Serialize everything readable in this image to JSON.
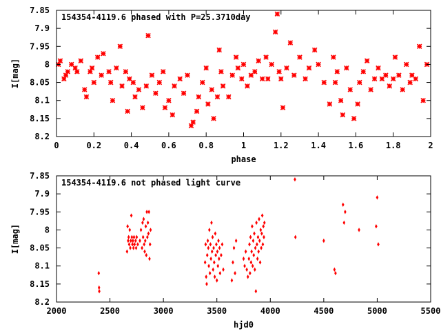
{
  "chart_data": [
    {
      "type": "scatter",
      "title": "154354-4119.6 phased with P=25.3710day",
      "xlabel": "phase",
      "ylabel": "I[mag]",
      "xlim": [
        0,
        2
      ],
      "ylim": [
        7.85,
        8.2
      ],
      "y_inverted": true,
      "grid": false,
      "marker_color": "#ff0000",
      "xticks": [
        "0",
        "0.2",
        "0.4",
        "0.6",
        "0.8",
        "1",
        "1.2",
        "1.4",
        "1.6",
        "1.8",
        "2"
      ],
      "xtick_values": [
        0,
        0.2,
        0.4,
        0.6,
        0.8,
        1.0,
        1.2,
        1.4,
        1.6,
        1.8,
        2.0
      ],
      "yticks": [
        "7.85",
        "7.9",
        "7.95",
        "8",
        "8.05",
        "8.1",
        "8.15",
        "8.2"
      ],
      "ytick_values": [
        7.85,
        7.9,
        7.95,
        8.0,
        8.05,
        8.1,
        8.15,
        8.2
      ],
      "points": [
        [
          0.01,
          8.0
        ],
        [
          0.02,
          7.99
        ],
        [
          0.04,
          8.04
        ],
        [
          0.05,
          8.03
        ],
        [
          0.06,
          8.02
        ],
        [
          0.08,
          8.0
        ],
        [
          0.1,
          8.01
        ],
        [
          0.11,
          8.02
        ],
        [
          0.13,
          7.99
        ],
        [
          0.15,
          8.07
        ],
        [
          0.16,
          8.09
        ],
        [
          0.18,
          8.02
        ],
        [
          0.19,
          8.01
        ],
        [
          0.2,
          8.05
        ],
        [
          0.22,
          7.98
        ],
        [
          0.24,
          8.03
        ],
        [
          0.25,
          7.97
        ],
        [
          0.28,
          8.02
        ],
        [
          0.29,
          8.05
        ],
        [
          0.3,
          8.1
        ],
        [
          0.32,
          8.01
        ],
        [
          0.34,
          7.95
        ],
        [
          0.35,
          8.06
        ],
        [
          0.37,
          8.02
        ],
        [
          0.38,
          8.13
        ],
        [
          0.39,
          8.04
        ],
        [
          0.41,
          8.05
        ],
        [
          0.42,
          8.09
        ],
        [
          0.44,
          8.07
        ],
        [
          0.46,
          8.12
        ],
        [
          0.48,
          8.06
        ],
        [
          0.49,
          7.92
        ],
        [
          0.51,
          8.03
        ],
        [
          0.53,
          8.08
        ],
        [
          0.55,
          8.05
        ],
        [
          0.57,
          8.02
        ],
        [
          0.58,
          8.12
        ],
        [
          0.6,
          8.1
        ],
        [
          0.62,
          8.14
        ],
        [
          0.63,
          8.06
        ],
        [
          0.66,
          8.04
        ],
        [
          0.68,
          8.08
        ],
        [
          0.7,
          8.03
        ],
        [
          0.72,
          8.17
        ],
        [
          0.73,
          8.16
        ],
        [
          0.75,
          8.13
        ],
        [
          0.76,
          8.09
        ],
        [
          0.78,
          8.05
        ],
        [
          0.8,
          8.01
        ],
        [
          0.81,
          8.11
        ],
        [
          0.83,
          8.07
        ],
        [
          0.84,
          8.15
        ],
        [
          0.86,
          8.09
        ],
        [
          0.87,
          7.96
        ],
        [
          0.88,
          8.02
        ],
        [
          0.89,
          8.06
        ],
        [
          0.92,
          8.09
        ],
        [
          0.94,
          8.03
        ],
        [
          0.96,
          7.98
        ],
        [
          0.97,
          8.01
        ],
        [
          0.99,
          8.04
        ],
        [
          1.0,
          8.0
        ],
        [
          1.02,
          8.06
        ],
        [
          1.04,
          8.03
        ],
        [
          1.06,
          8.02
        ],
        [
          1.08,
          7.99
        ],
        [
          1.1,
          8.04
        ],
        [
          1.12,
          7.98
        ],
        [
          1.13,
          8.04
        ],
        [
          1.15,
          8.0
        ],
        [
          1.17,
          7.91
        ],
        [
          1.18,
          7.86
        ],
        [
          1.19,
          8.02
        ],
        [
          1.2,
          8.04
        ],
        [
          1.21,
          8.12
        ],
        [
          1.23,
          8.01
        ],
        [
          1.25,
          7.94
        ],
        [
          1.27,
          8.03
        ],
        [
          1.3,
          7.98
        ],
        [
          1.33,
          8.04
        ],
        [
          1.35,
          8.01
        ],
        [
          1.38,
          7.96
        ],
        [
          1.4,
          8.0
        ],
        [
          1.43,
          8.05
        ],
        [
          1.46,
          8.11
        ],
        [
          1.48,
          7.98
        ],
        [
          1.49,
          8.05
        ],
        [
          1.5,
          8.02
        ],
        [
          1.52,
          8.1
        ],
        [
          1.53,
          8.14
        ],
        [
          1.55,
          8.01
        ],
        [
          1.57,
          8.07
        ],
        [
          1.59,
          8.15
        ],
        [
          1.61,
          8.11
        ],
        [
          1.62,
          8.05
        ],
        [
          1.64,
          8.02
        ],
        [
          1.66,
          7.99
        ],
        [
          1.68,
          8.07
        ],
        [
          1.7,
          8.04
        ],
        [
          1.72,
          8.01
        ],
        [
          1.74,
          8.04
        ],
        [
          1.76,
          8.03
        ],
        [
          1.78,
          8.06
        ],
        [
          1.8,
          8.04
        ],
        [
          1.81,
          7.98
        ],
        [
          1.83,
          8.03
        ],
        [
          1.85,
          8.07
        ],
        [
          1.87,
          8.0
        ],
        [
          1.89,
          8.05
        ],
        [
          1.9,
          8.03
        ],
        [
          1.92,
          8.04
        ],
        [
          1.94,
          7.95
        ],
        [
          1.96,
          8.1
        ],
        [
          1.98,
          8.0
        ]
      ]
    },
    {
      "type": "scatter",
      "title": "154354-4119.6 not phased light curve",
      "xlabel": "hjd0",
      "ylabel": "I[mag]",
      "xlim": [
        2000,
        5500
      ],
      "ylim": [
        7.85,
        8.2
      ],
      "y_inverted": true,
      "grid": false,
      "marker_color": "#ff0000",
      "xticks": [
        "2000",
        "2500",
        "3000",
        "3500",
        "4000",
        "4500",
        "5000",
        "5500"
      ],
      "xtick_values": [
        2000,
        2500,
        3000,
        3500,
        4000,
        4500,
        5000,
        5500
      ],
      "yticks": [
        "7.85",
        "7.9",
        "7.95",
        "8",
        "8.05",
        "8.1",
        "8.15",
        "8.2"
      ],
      "ytick_values": [
        7.85,
        7.9,
        7.95,
        8.0,
        8.05,
        8.1,
        8.15,
        8.2
      ],
      "points": [
        [
          2395,
          8.12
        ],
        [
          2398,
          8.16
        ],
        [
          2400,
          8.17
        ],
        [
          2660,
          8.06
        ],
        [
          2665,
          7.99
        ],
        [
          2670,
          8.03
        ],
        [
          2675,
          8.02
        ],
        [
          2680,
          8.04
        ],
        [
          2685,
          8.0
        ],
        [
          2690,
          8.05
        ],
        [
          2695,
          8.03
        ],
        [
          2700,
          7.96
        ],
        [
          2705,
          8.02
        ],
        [
          2710,
          8.04
        ],
        [
          2715,
          8.03
        ],
        [
          2720,
          8.05
        ],
        [
          2725,
          8.02
        ],
        [
          2730,
          8.04
        ],
        [
          2740,
          8.03
        ],
        [
          2745,
          8.05
        ],
        [
          2750,
          8.02
        ],
        [
          2760,
          8.04
        ],
        [
          2780,
          8.03
        ],
        [
          2790,
          8.0
        ],
        [
          2800,
          8.05
        ],
        [
          2805,
          7.98
        ],
        [
          2810,
          8.02
        ],
        [
          2815,
          7.97
        ],
        [
          2820,
          8.04
        ],
        [
          2825,
          8.06
        ],
        [
          2830,
          8.03
        ],
        [
          2835,
          7.99
        ],
        [
          2840,
          8.07
        ],
        [
          2845,
          7.95
        ],
        [
          2850,
          8.02
        ],
        [
          2855,
          7.98
        ],
        [
          2860,
          8.01
        ],
        [
          2865,
          7.95
        ],
        [
          2870,
          8.08
        ],
        [
          2875,
          8.04
        ],
        [
          2880,
          8.0
        ],
        [
          3390,
          8.09
        ],
        [
          3395,
          8.04
        ],
        [
          3400,
          8.13
        ],
        [
          3405,
          8.15
        ],
        [
          3410,
          8.07
        ],
        [
          3415,
          8.03
        ],
        [
          3420,
          8.05
        ],
        [
          3425,
          8.1
        ],
        [
          3430,
          8.0
        ],
        [
          3435,
          8.12
        ],
        [
          3440,
          8.04
        ],
        [
          3445,
          8.08
        ],
        [
          3450,
          7.98
        ],
        [
          3455,
          8.06
        ],
        [
          3460,
          8.02
        ],
        [
          3465,
          8.11
        ],
        [
          3470,
          8.05
        ],
        [
          3475,
          8.09
        ],
        [
          3480,
          8.13
        ],
        [
          3485,
          8.01
        ],
        [
          3490,
          8.07
        ],
        [
          3495,
          8.04
        ],
        [
          3500,
          8.14
        ],
        [
          3505,
          8.06
        ],
        [
          3510,
          8.1
        ],
        [
          3515,
          8.03
        ],
        [
          3520,
          8.08
        ],
        [
          3525,
          8.05
        ],
        [
          3530,
          8.12
        ],
        [
          3540,
          8.07
        ],
        [
          3550,
          8.04
        ],
        [
          3560,
          8.11
        ],
        [
          3640,
          8.14
        ],
        [
          3650,
          8.09
        ],
        [
          3660,
          8.05
        ],
        [
          3670,
          8.12
        ],
        [
          3680,
          8.03
        ],
        [
          3750,
          8.08
        ],
        [
          3760,
          8.1
        ],
        [
          3770,
          8.06
        ],
        [
          3780,
          8.11
        ],
        [
          3790,
          8.13
        ],
        [
          3800,
          8.08
        ],
        [
          3805,
          8.04
        ],
        [
          3810,
          8.12
        ],
        [
          3815,
          8.02
        ],
        [
          3820,
          8.09
        ],
        [
          3825,
          8.06
        ],
        [
          3830,
          7.99
        ],
        [
          3835,
          8.1
        ],
        [
          3840,
          8.03
        ],
        [
          3845,
          8.07
        ],
        [
          3850,
          8.01
        ],
        [
          3855,
          8.11
        ],
        [
          3860,
          8.05
        ],
        [
          3865,
          8.17
        ],
        [
          3870,
          7.98
        ],
        [
          3875,
          8.04
        ],
        [
          3880,
          8.08
        ],
        [
          3885,
          8.02
        ],
        [
          3890,
          8.06
        ],
        [
          3895,
          7.97
        ],
        [
          3900,
          8.03
        ],
        [
          3905,
          8.09
        ],
        [
          3910,
          8.0
        ],
        [
          3915,
          8.05
        ],
        [
          3920,
          8.01
        ],
        [
          3925,
          7.96
        ],
        [
          3930,
          8.04
        ],
        [
          3935,
          7.99
        ],
        [
          3940,
          8.02
        ],
        [
          3945,
          7.98
        ],
        [
          4230,
          7.86
        ],
        [
          4235,
          8.02
        ],
        [
          4500,
          8.03
        ],
        [
          4600,
          8.11
        ],
        [
          4610,
          8.12
        ],
        [
          4680,
          7.93
        ],
        [
          4690,
          7.98
        ],
        [
          4700,
          7.95
        ],
        [
          4830,
          8.0
        ],
        [
          4990,
          7.99
        ],
        [
          5000,
          7.91
        ],
        [
          5010,
          8.04
        ]
      ]
    }
  ]
}
